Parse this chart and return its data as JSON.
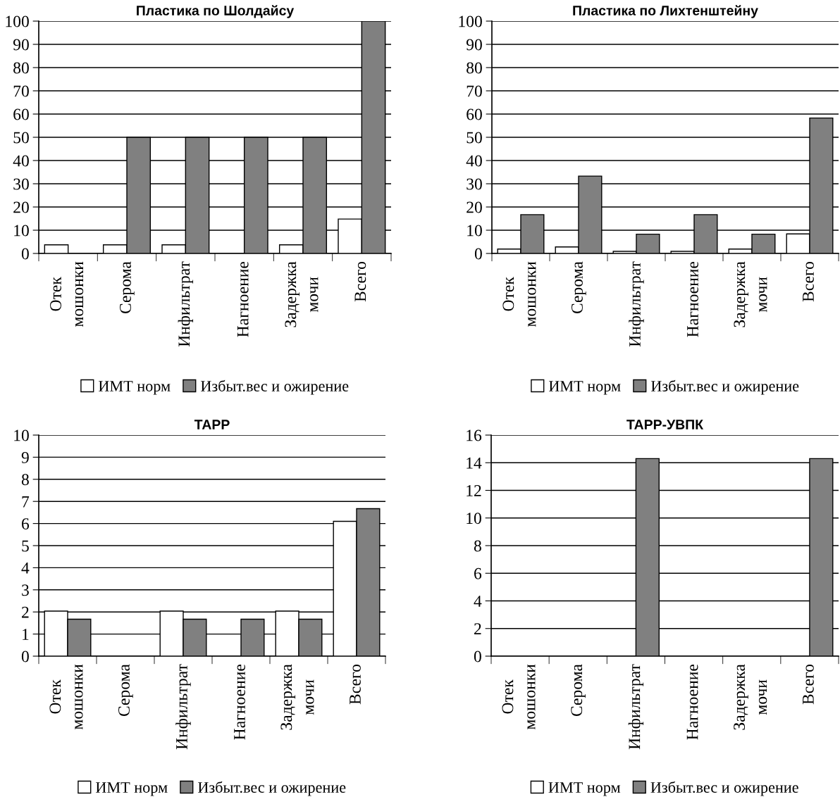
{
  "chart_data": [
    {
      "type": "bar",
      "title": "Пластика по Шолдайсу",
      "categories": [
        "Отек\nмошонки",
        "Серома",
        "Инфильтрат",
        "Нагноение",
        "Задержка\nмочи",
        "Всего"
      ],
      "series": [
        {
          "name": "ИМТ норм",
          "color": "#ffffff",
          "values": [
            3.7,
            3.7,
            3.7,
            null,
            3.7,
            14.8
          ]
        },
        {
          "name": "Избыт.вес и ожирение",
          "color": "#808080",
          "values": [
            null,
            50,
            50,
            50,
            50,
            100
          ]
        }
      ],
      "ylim": [
        0,
        100
      ],
      "yticks": [
        0,
        10,
        20,
        30,
        40,
        50,
        60,
        70,
        80,
        90,
        100
      ],
      "grid": "y",
      "legend": "bottom"
    },
    {
      "type": "bar",
      "title": "Пластика по Лихтенштейну",
      "categories": [
        "Отек\nмошонки",
        "Серома",
        "Инфильтрат",
        "Нагноение",
        "Задержка\nмочи",
        "Всего"
      ],
      "series": [
        {
          "name": "ИМТ норм",
          "color": "#ffffff",
          "values": [
            1.9,
            2.8,
            0.9,
            0.9,
            1.9,
            8.4
          ]
        },
        {
          "name": "Избыт.вес и ожирение",
          "color": "#808080",
          "values": [
            16.7,
            33.3,
            8.3,
            16.7,
            8.3,
            58.3
          ]
        }
      ],
      "ylim": [
        0,
        100
      ],
      "yticks": [
        0,
        10,
        20,
        30,
        40,
        50,
        60,
        70,
        80,
        90,
        100
      ],
      "grid": "y",
      "legend": "bottom"
    },
    {
      "type": "bar",
      "title": "ТАРР",
      "categories": [
        "Отек\nмошонки",
        "Серома",
        "Инфильтрат",
        "Нагноение",
        "Задержка\nмочи",
        "Всего"
      ],
      "series": [
        {
          "name": "ИМТ норм",
          "color": "#ffffff",
          "values": [
            2.04,
            null,
            2.04,
            null,
            2.04,
            6.1
          ]
        },
        {
          "name": "Избыт.вес и ожирение",
          "color": "#808080",
          "values": [
            1.67,
            null,
            1.67,
            1.67,
            1.67,
            6.67
          ]
        }
      ],
      "ylim": [
        0,
        10
      ],
      "yticks": [
        0,
        1,
        2,
        3,
        4,
        5,
        6,
        7,
        8,
        9,
        10
      ],
      "grid": "y",
      "legend": "bottom"
    },
    {
      "type": "bar",
      "title": "ТАРР-УВПК",
      "categories": [
        "Отек\nмошонки",
        "Серома",
        "Инфильтрат",
        "Нагноение",
        "Задержка\nмочи",
        "Всего"
      ],
      "series": [
        {
          "name": "ИМТ норм",
          "color": "#ffffff",
          "values": [
            null,
            null,
            null,
            null,
            null,
            null
          ]
        },
        {
          "name": "Избыт.вес и ожирение",
          "color": "#808080",
          "values": [
            null,
            null,
            14.3,
            null,
            null,
            14.3
          ]
        }
      ],
      "ylim": [
        0,
        16
      ],
      "yticks": [
        0,
        2,
        4,
        6,
        8,
        10,
        12,
        14,
        16
      ],
      "grid": "y",
      "legend": "bottom"
    }
  ]
}
